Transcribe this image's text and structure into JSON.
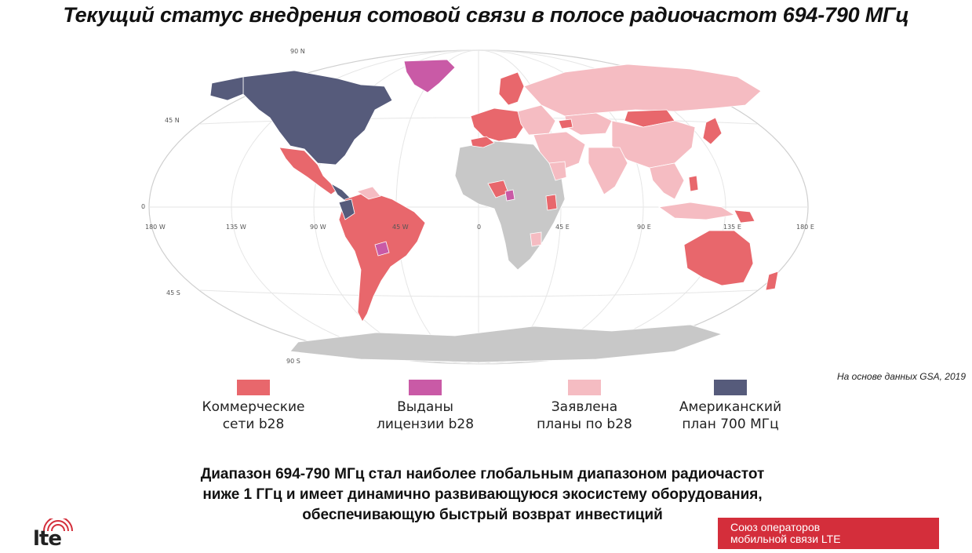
{
  "title": "Текущий статус внедрения сотовой связи в полосе радиочастот 694-790 МГц",
  "source_note": "На основе данных GSA, 2019",
  "map": {
    "coordinate_labels": {
      "lat_90n": "90 N",
      "lat_45n": "45 N",
      "lat_0": "0",
      "lat_45s": "45 S",
      "lat_90s": "90 S",
      "lon_180w": "180 W",
      "lon_135w": "135 W",
      "lon_90w": "90 W",
      "lon_45w": "45 W",
      "lon_0": "0",
      "lon_45e": "45 E",
      "lon_90e": "90 E",
      "lon_135e": "135 E",
      "lon_180e": "180 E"
    },
    "colors": {
      "commercial": "#e8676c",
      "licensed": "#c95aa6",
      "planned": "#f5bcc2",
      "americas_700": "#565b7b",
      "no_data": "#c8c8c8",
      "ocean": "#ffffff",
      "graticule": "#e6e6e6"
    }
  },
  "legend": [
    {
      "label": "Коммерческие\nсети b28",
      "color": "#e8676c"
    },
    {
      "label": "Выданы\nлицензии b28",
      "color": "#c95aa6"
    },
    {
      "label": "Заявлена\nпланы по b28",
      "color": "#f5bcc2"
    },
    {
      "label": "Американский\nплан 700 МГц",
      "color": "#565b7b"
    }
  ],
  "summary_lines": [
    "Диапазон 694-790 МГц стал наиболее глобальным диапазоном радиочастот",
    "ниже 1 ГГц и имеет динамично развивающуюся экосистему оборудования,",
    "обеспечивающую быстрый возврат инвестиций"
  ],
  "logo": {
    "text": "lte"
  },
  "badge": {
    "line1": "Союз операторов",
    "line2": "мобильной связи LTE"
  }
}
